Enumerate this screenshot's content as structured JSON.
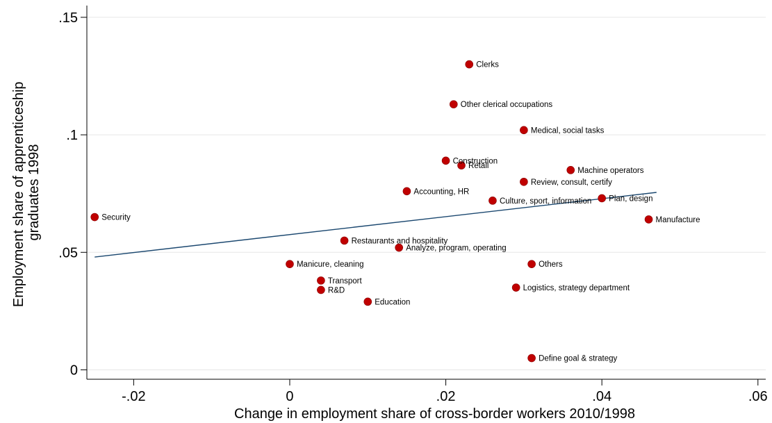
{
  "chart_data": {
    "type": "scatter",
    "xlabel": "Change in employment share of cross-border workers 2010/1998",
    "ylabel_lines": [
      "Employment share of apprenticeship",
      "graduates 1998"
    ],
    "xlim": [
      -0.026,
      0.061
    ],
    "ylim": [
      -0.004,
      0.155
    ],
    "x_ticks": [
      {
        "value": -0.02,
        "label": "-.02"
      },
      {
        "value": 0,
        "label": "0"
      },
      {
        "value": 0.02,
        "label": ".02"
      },
      {
        "value": 0.04,
        "label": ".04"
      },
      {
        "value": 0.06,
        "label": ".06"
      }
    ],
    "y_ticks": [
      {
        "value": 0,
        "label": "0"
      },
      {
        "value": 0.05,
        "label": ".05"
      },
      {
        "value": 0.1,
        "label": ".1"
      },
      {
        "value": 0.15,
        "label": ".15"
      }
    ],
    "grid": "horizontal",
    "point_color": "#c00000",
    "line_color": "#1a476f",
    "points": [
      {
        "label": "Clerks",
        "x": 0.023,
        "y": 0.13
      },
      {
        "label": "Other clerical occupations",
        "x": 0.021,
        "y": 0.113
      },
      {
        "label": "Medical, social tasks",
        "x": 0.03,
        "y": 0.102
      },
      {
        "label": "Construction",
        "x": 0.02,
        "y": 0.089
      },
      {
        "label": "Retail",
        "x": 0.022,
        "y": 0.087
      },
      {
        "label": "Machine operators",
        "x": 0.036,
        "y": 0.085
      },
      {
        "label": "Review, consult, certify",
        "x": 0.03,
        "y": 0.08
      },
      {
        "label": "Accounting, HR",
        "x": 0.015,
        "y": 0.076
      },
      {
        "label": "Culture, sport, information",
        "x": 0.026,
        "y": 0.072
      },
      {
        "label": "Plan, design",
        "x": 0.04,
        "y": 0.073
      },
      {
        "label": "Security",
        "x": -0.025,
        "y": 0.065
      },
      {
        "label": "Manufacture",
        "x": 0.046,
        "y": 0.064
      },
      {
        "label": "Restaurants and hospitality",
        "x": 0.007,
        "y": 0.055
      },
      {
        "label": "Analyze, program, operating",
        "x": 0.014,
        "y": 0.052
      },
      {
        "label": "Manicure, cleaning",
        "x": 0.0,
        "y": 0.045
      },
      {
        "label": "Others",
        "x": 0.031,
        "y": 0.045
      },
      {
        "label": "Transport",
        "x": 0.004,
        "y": 0.038
      },
      {
        "label": "R&D",
        "x": 0.004,
        "y": 0.034
      },
      {
        "label": "Logistics, strategy department",
        "x": 0.029,
        "y": 0.035
      },
      {
        "label": "Education",
        "x": 0.01,
        "y": 0.029
      },
      {
        "label": "Define goal & strategy",
        "x": 0.031,
        "y": 0.005
      }
    ],
    "fit_line": {
      "x": [
        -0.025,
        0.047
      ],
      "y": [
        0.048,
        0.0755
      ]
    }
  }
}
